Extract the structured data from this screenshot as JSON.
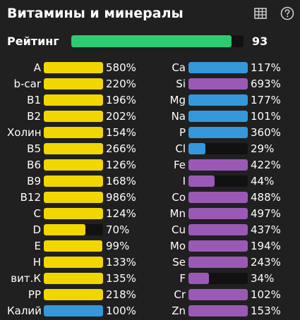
{
  "header": {
    "title": "Витамины и минералы",
    "table_icon": "table-icon",
    "help_icon": "help-circle-icon"
  },
  "rating": {
    "label": "Рейтинг",
    "value": "93",
    "fraction": 0.93,
    "color": "#2ecc71"
  },
  "colors": {
    "yellow": "#f2d600",
    "blue": "#3498db",
    "purple": "#9b59b6",
    "track": "#111111",
    "background": "#202020"
  },
  "vitamins": [
    {
      "label": "A",
      "value": "580%",
      "fraction": 1.0,
      "color": "yellow"
    },
    {
      "label": "b-car",
      "value": "220%",
      "fraction": 1.0,
      "color": "yellow"
    },
    {
      "label": "B1",
      "value": "196%",
      "fraction": 1.0,
      "color": "yellow"
    },
    {
      "label": "B2",
      "value": "202%",
      "fraction": 1.0,
      "color": "yellow"
    },
    {
      "label": "Холин",
      "value": "154%",
      "fraction": 1.0,
      "color": "yellow"
    },
    {
      "label": "B5",
      "value": "266%",
      "fraction": 1.0,
      "color": "yellow"
    },
    {
      "label": "B6",
      "value": "126%",
      "fraction": 1.0,
      "color": "yellow"
    },
    {
      "label": "B9",
      "value": "168%",
      "fraction": 1.0,
      "color": "yellow"
    },
    {
      "label": "B12",
      "value": "986%",
      "fraction": 1.0,
      "color": "yellow"
    },
    {
      "label": "C",
      "value": "124%",
      "fraction": 1.0,
      "color": "yellow"
    },
    {
      "label": "D",
      "value": "70%",
      "fraction": 0.7,
      "color": "yellow"
    },
    {
      "label": "E",
      "value": "99%",
      "fraction": 0.99,
      "color": "yellow"
    },
    {
      "label": "H",
      "value": "133%",
      "fraction": 1.0,
      "color": "yellow"
    },
    {
      "label": "вит.К",
      "value": "135%",
      "fraction": 1.0,
      "color": "yellow"
    },
    {
      "label": "PP",
      "value": "218%",
      "fraction": 1.0,
      "color": "yellow"
    },
    {
      "label": "Калий",
      "value": "100%",
      "fraction": 1.0,
      "color": "blue"
    }
  ],
  "minerals": [
    {
      "label": "Ca",
      "value": "117%",
      "fraction": 1.0,
      "color": "blue"
    },
    {
      "label": "Si",
      "value": "693%",
      "fraction": 1.0,
      "color": "purple"
    },
    {
      "label": "Mg",
      "value": "177%",
      "fraction": 1.0,
      "color": "blue"
    },
    {
      "label": "Na",
      "value": "101%",
      "fraction": 1.0,
      "color": "blue"
    },
    {
      "label": "P",
      "value": "360%",
      "fraction": 1.0,
      "color": "blue"
    },
    {
      "label": "Cl",
      "value": "29%",
      "fraction": 0.29,
      "color": "blue"
    },
    {
      "label": "Fe",
      "value": "422%",
      "fraction": 1.0,
      "color": "purple"
    },
    {
      "label": "I",
      "value": "44%",
      "fraction": 0.44,
      "color": "purple"
    },
    {
      "label": "Co",
      "value": "488%",
      "fraction": 1.0,
      "color": "purple"
    },
    {
      "label": "Mn",
      "value": "497%",
      "fraction": 1.0,
      "color": "purple"
    },
    {
      "label": "Cu",
      "value": "437%",
      "fraction": 1.0,
      "color": "purple"
    },
    {
      "label": "Mo",
      "value": "194%",
      "fraction": 1.0,
      "color": "purple"
    },
    {
      "label": "Se",
      "value": "243%",
      "fraction": 1.0,
      "color": "purple"
    },
    {
      "label": "F",
      "value": "34%",
      "fraction": 0.34,
      "color": "purple"
    },
    {
      "label": "Cr",
      "value": "102%",
      "fraction": 1.0,
      "color": "purple"
    },
    {
      "label": "Zn",
      "value": "153%",
      "fraction": 1.0,
      "color": "purple"
    }
  ]
}
